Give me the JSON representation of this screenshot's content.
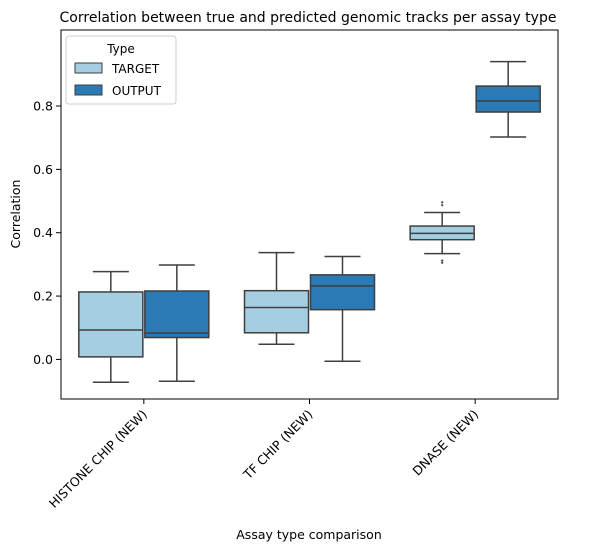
{
  "chart_data": {
    "type": "box",
    "title": "Correlation between true and predicted genomic tracks per assay type",
    "xlabel": "Assay type comparison",
    "ylabel": "Correlation",
    "ylim": [
      -0.125,
      1.04
    ],
    "yticks": [
      0.0,
      0.2,
      0.4,
      0.6,
      0.8
    ],
    "ytick_labels": [
      "0.0",
      "0.2",
      "0.4",
      "0.6",
      "0.8"
    ],
    "categories": [
      "HISTONE CHIP (NEW)",
      "TF CHIP (NEW)",
      "DNASE (NEW)"
    ],
    "grid": false,
    "legend": {
      "title": "Type",
      "position": "top-left",
      "entries": [
        "TARGET",
        "OUTPUT"
      ]
    },
    "series": [
      {
        "name": "TARGET",
        "color": "#a6cee3",
        "boxes": [
          {
            "category": "HISTONE CHIP (NEW)",
            "whislo": -0.072,
            "q1": 0.008,
            "med": 0.093,
            "q3": 0.213,
            "whishi": 0.277,
            "fliers": []
          },
          {
            "category": "TF CHIP (NEW)",
            "whislo": 0.048,
            "q1": 0.084,
            "med": 0.164,
            "q3": 0.217,
            "whishi": 0.337,
            "fliers": []
          },
          {
            "category": "DNASE (NEW)",
            "whislo": 0.334,
            "q1": 0.378,
            "med": 0.398,
            "q3": 0.421,
            "whishi": 0.464,
            "fliers": [
              0.496,
              0.487,
              0.312,
              0.305
            ]
          }
        ]
      },
      {
        "name": "OUTPUT",
        "color": "#2b79b5",
        "boxes": [
          {
            "category": "HISTONE CHIP (NEW)",
            "whislo": -0.069,
            "q1": 0.069,
            "med": 0.083,
            "q3": 0.216,
            "whishi": 0.298,
            "fliers": []
          },
          {
            "category": "TF CHIP (NEW)",
            "whislo": -0.006,
            "q1": 0.157,
            "med": 0.232,
            "q3": 0.267,
            "whishi": 0.325,
            "fliers": []
          },
          {
            "category": "DNASE (NEW)",
            "whislo": 0.702,
            "q1": 0.781,
            "med": 0.816,
            "q3": 0.863,
            "whishi": 0.94,
            "fliers": []
          }
        ]
      }
    ]
  }
}
